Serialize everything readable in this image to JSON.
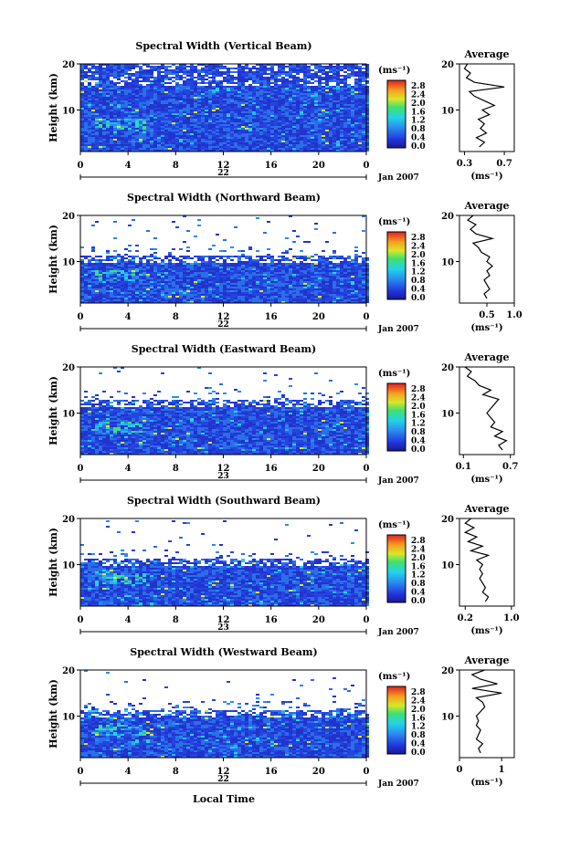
{
  "figure": {
    "x_axis_label": "Local Time",
    "date_label": "Jan 2007",
    "unit_label": "(ms⁻¹)",
    "average_title": "Average",
    "height_axis_label": "Height (km)"
  },
  "chart_data": [
    {
      "type": "heatmap",
      "title": "Spectral Width (Vertical Beam)",
      "day_label": "22",
      "x_ticks": [
        "0",
        "4",
        "8",
        "12",
        "16",
        "20",
        "0"
      ],
      "xlim": [
        0,
        24
      ],
      "y_ticks": [
        "20",
        "10"
      ],
      "ylim": [
        1,
        20
      ],
      "colorbar": {
        "ticks": [
          "2.8",
          "2.4",
          "2.0",
          "1.6",
          "1.2",
          "0.8",
          "0.4",
          "0.0"
        ],
        "range": [
          0.0,
          2.8
        ]
      },
      "average": {
        "x_ticks": [
          "0.3",
          "0.7"
        ],
        "xlim": [
          0.25,
          0.8
        ],
        "profile": [
          [
            0.45,
            2
          ],
          [
            0.5,
            3
          ],
          [
            0.42,
            4
          ],
          [
            0.52,
            5
          ],
          [
            0.46,
            6
          ],
          [
            0.5,
            7
          ],
          [
            0.44,
            8
          ],
          [
            0.55,
            9
          ],
          [
            0.48,
            10
          ],
          [
            0.6,
            11
          ],
          [
            0.5,
            12
          ],
          [
            0.4,
            13
          ],
          [
            0.35,
            14
          ],
          [
            0.7,
            15
          ],
          [
            0.4,
            16
          ],
          [
            0.32,
            17
          ],
          [
            0.36,
            18
          ],
          [
            0.3,
            19
          ],
          [
            0.33,
            20
          ]
        ]
      }
    },
    {
      "type": "heatmap",
      "title": "Spectral Width (Northward Beam)",
      "day_label": "22",
      "x_ticks": [
        "0",
        "4",
        "8",
        "12",
        "16",
        "20",
        "0"
      ],
      "xlim": [
        0,
        24
      ],
      "y_ticks": [
        "20",
        "10"
      ],
      "ylim": [
        1,
        20
      ],
      "colorbar": {
        "ticks": [
          "2.8",
          "2.4",
          "2.0",
          "1.6",
          "1.2",
          "0.8",
          "0.4",
          "0.0"
        ],
        "range": [
          0.0,
          2.8
        ]
      },
      "average": {
        "x_ticks": [
          "0.5",
          "1.0"
        ],
        "xlim": [
          0.0,
          1.0
        ],
        "profile": [
          [
            0.5,
            2
          ],
          [
            0.45,
            3
          ],
          [
            0.55,
            4
          ],
          [
            0.5,
            5
          ],
          [
            0.45,
            6
          ],
          [
            0.55,
            7
          ],
          [
            0.5,
            8
          ],
          [
            0.6,
            9
          ],
          [
            0.5,
            10
          ],
          [
            0.55,
            11
          ],
          [
            0.4,
            12
          ],
          [
            0.35,
            13
          ],
          [
            0.25,
            14
          ],
          [
            0.6,
            15
          ],
          [
            0.3,
            16
          ],
          [
            0.2,
            17
          ],
          [
            0.3,
            18
          ],
          [
            0.15,
            19
          ],
          [
            0.25,
            20
          ]
        ]
      }
    },
    {
      "type": "heatmap",
      "title": "Spectral Width (Eastward Beam)",
      "day_label": "23",
      "x_ticks": [
        "0",
        "4",
        "8",
        "12",
        "16",
        "20",
        "0"
      ],
      "xlim": [
        0,
        24
      ],
      "y_ticks": [
        "20",
        "10"
      ],
      "ylim": [
        1,
        20
      ],
      "colorbar": {
        "ticks": [
          "2.8",
          "2.4",
          "2.0",
          "1.6",
          "1.2",
          "0.8",
          "0.4",
          "0.0"
        ],
        "range": [
          0.0,
          2.8
        ]
      },
      "average": {
        "x_ticks": [
          "0.1",
          "0.7"
        ],
        "xlim": [
          0.05,
          0.75
        ],
        "profile": [
          [
            0.6,
            2
          ],
          [
            0.55,
            3
          ],
          [
            0.65,
            4
          ],
          [
            0.5,
            5
          ],
          [
            0.6,
            6
          ],
          [
            0.45,
            7
          ],
          [
            0.5,
            8
          ],
          [
            0.45,
            9
          ],
          [
            0.4,
            10
          ],
          [
            0.45,
            11
          ],
          [
            0.5,
            12
          ],
          [
            0.55,
            13
          ],
          [
            0.35,
            14
          ],
          [
            0.45,
            15
          ],
          [
            0.3,
            16
          ],
          [
            0.25,
            17
          ],
          [
            0.15,
            18
          ],
          [
            0.2,
            19
          ],
          [
            0.12,
            20
          ]
        ]
      }
    },
    {
      "type": "heatmap",
      "title": "Spectral Width (Southward Beam)",
      "day_label": "23",
      "x_ticks": [
        "0",
        "4",
        "8",
        "12",
        "16",
        "20",
        "0"
      ],
      "xlim": [
        0,
        24
      ],
      "y_ticks": [
        "20",
        "10"
      ],
      "ylim": [
        1,
        20
      ],
      "colorbar": {
        "ticks": [
          "2.8",
          "2.4",
          "2.0",
          "1.6",
          "1.2",
          "0.8",
          "0.4",
          "0.0"
        ],
        "range": [
          0.0,
          2.8
        ]
      },
      "average": {
        "x_ticks": [
          "0.2",
          "1.0"
        ],
        "xlim": [
          0.1,
          1.05
        ],
        "profile": [
          [
            0.55,
            2
          ],
          [
            0.6,
            3
          ],
          [
            0.5,
            4
          ],
          [
            0.55,
            5
          ],
          [
            0.5,
            6
          ],
          [
            0.45,
            7
          ],
          [
            0.5,
            8
          ],
          [
            0.45,
            9
          ],
          [
            0.5,
            10
          ],
          [
            0.4,
            11
          ],
          [
            0.6,
            12
          ],
          [
            0.3,
            13
          ],
          [
            0.5,
            14
          ],
          [
            0.25,
            15
          ],
          [
            0.4,
            16
          ],
          [
            0.2,
            17
          ],
          [
            0.35,
            18
          ],
          [
            0.2,
            19
          ],
          [
            0.3,
            20
          ]
        ]
      }
    },
    {
      "type": "heatmap",
      "title": "Spectral Width (Westward Beam)",
      "day_label": "22",
      "x_ticks": [
        "0",
        "4",
        "8",
        "12",
        "16",
        "20",
        "0"
      ],
      "xlim": [
        0,
        24
      ],
      "y_ticks": [
        "20",
        "10"
      ],
      "ylim": [
        1,
        20
      ],
      "colorbar": {
        "ticks": [
          "2.8",
          "2.4",
          "2.0",
          "1.6",
          "1.2",
          "0.8",
          "0.4",
          "0.0"
        ],
        "range": [
          0.0,
          2.8
        ]
      },
      "average": {
        "x_ticks": [
          "0",
          "1"
        ],
        "xlim": [
          0.0,
          1.3
        ],
        "profile": [
          [
            0.5,
            2
          ],
          [
            0.45,
            3
          ],
          [
            0.55,
            4
          ],
          [
            0.4,
            5
          ],
          [
            0.45,
            6
          ],
          [
            0.5,
            7
          ],
          [
            0.4,
            8
          ],
          [
            0.45,
            9
          ],
          [
            0.4,
            10
          ],
          [
            0.5,
            11
          ],
          [
            0.6,
            12
          ],
          [
            0.55,
            13
          ],
          [
            0.4,
            14
          ],
          [
            1.0,
            15
          ],
          [
            0.3,
            16
          ],
          [
            0.9,
            17
          ],
          [
            0.5,
            18
          ],
          [
            0.3,
            19
          ],
          [
            0.6,
            20
          ]
        ]
      }
    }
  ]
}
